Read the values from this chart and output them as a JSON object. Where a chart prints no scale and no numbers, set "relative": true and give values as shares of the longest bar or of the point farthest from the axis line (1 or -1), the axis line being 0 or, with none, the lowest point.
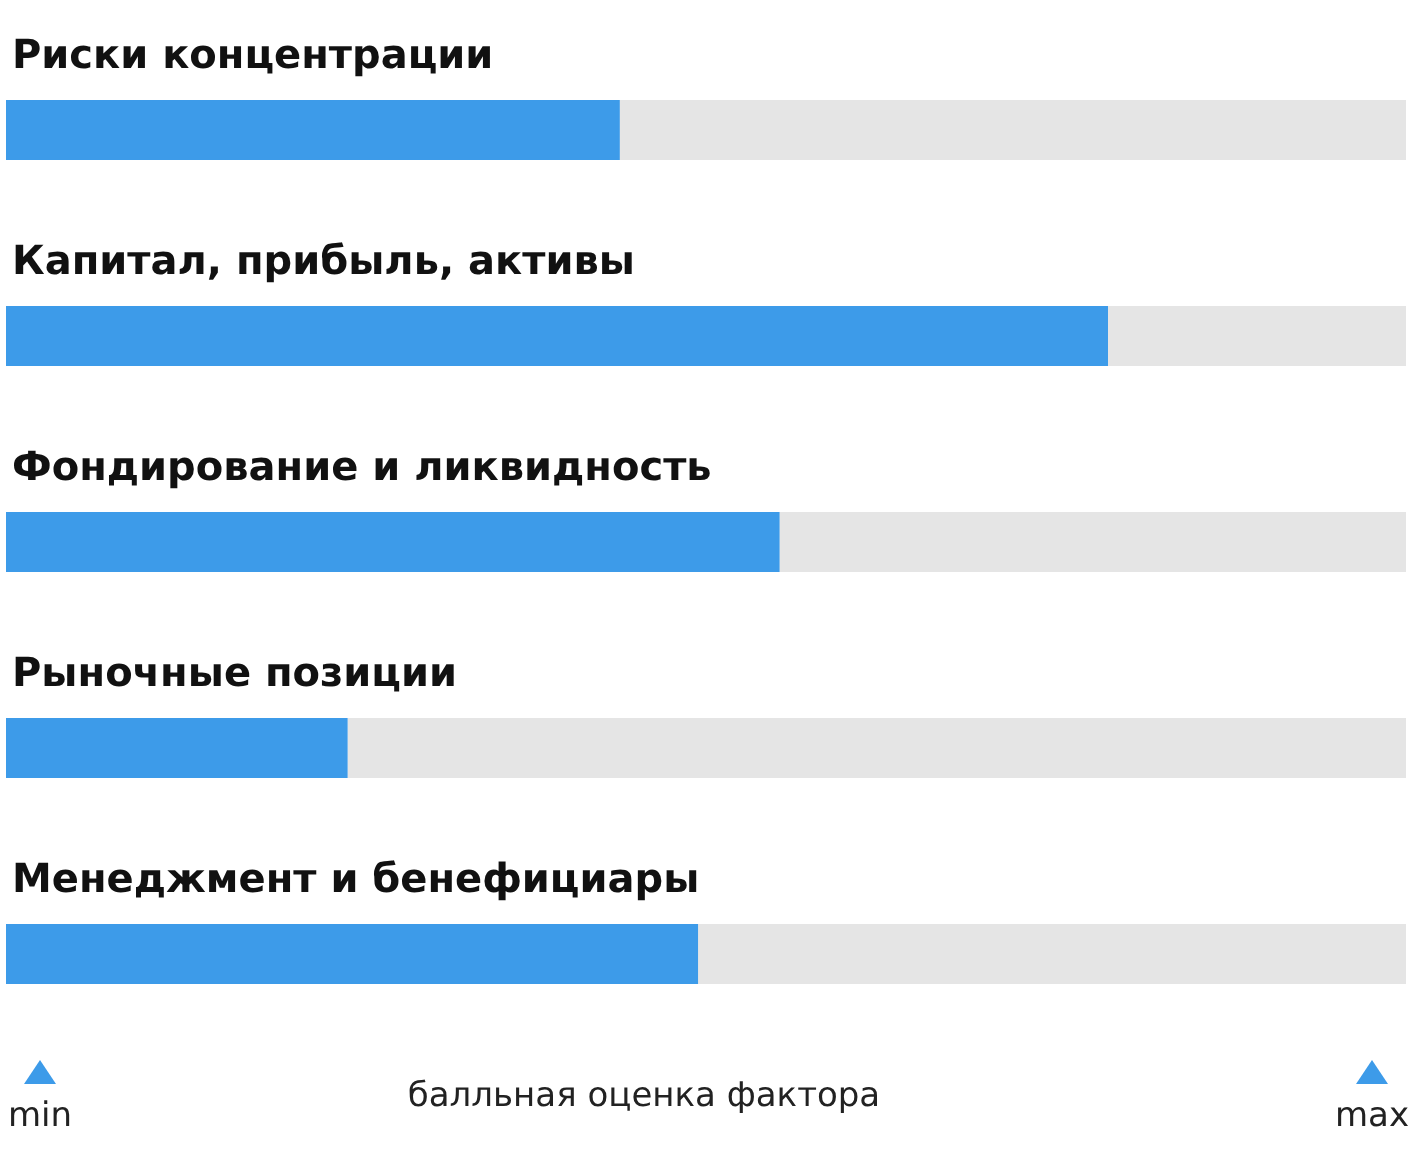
{
  "chart_data": {
    "type": "bar",
    "orientation": "horizontal",
    "relative": true,
    "categories": [
      "Риски концентрации",
      "Капитал, прибыль, активы",
      "Фондирование и ликвидность",
      "Рыночные позиции",
      "Менеджмент и бенефициары"
    ],
    "values": [
      0.557,
      1,
      0.702,
      0.31,
      0.628
    ],
    "color": "#3d9be9",
    "xlabel": "балльная оценка фактора",
    "annotations": [
      "min",
      "max"
    ]
  }
}
